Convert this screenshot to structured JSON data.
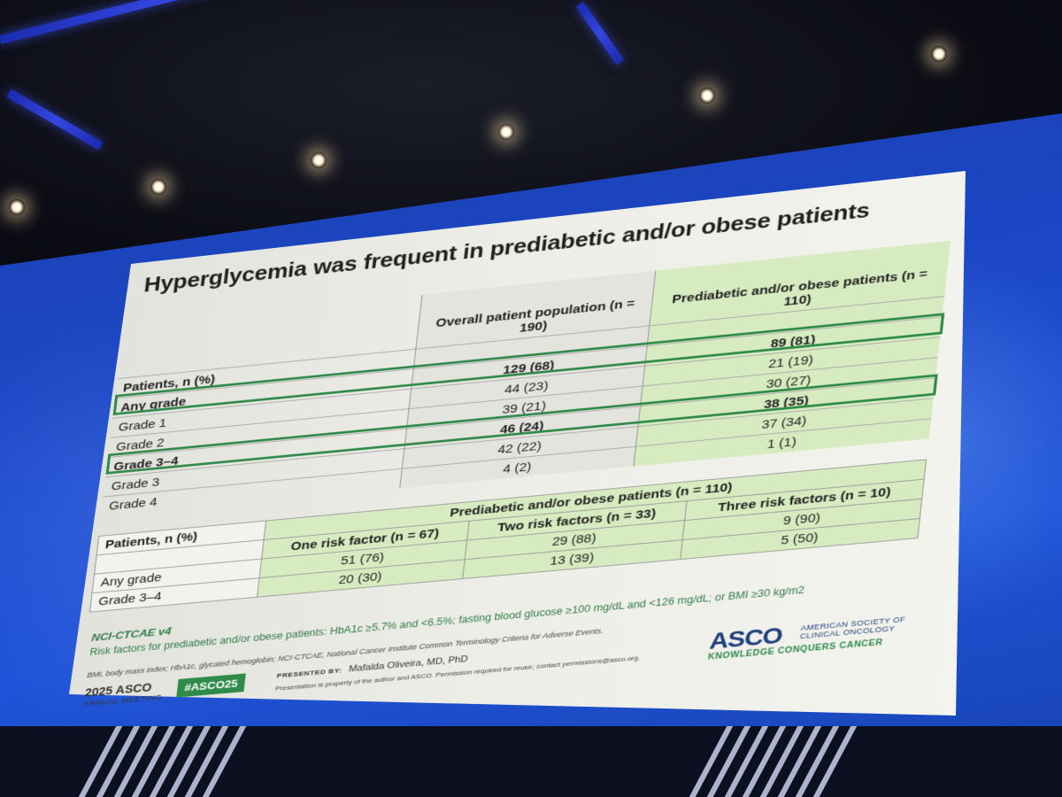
{
  "slide": {
    "title": "Hyperglycemia was frequent in prediabetic and/or obese patients",
    "table1": {
      "col_overall": "Overall patient population (n = 190)",
      "col_prediabetic": "Prediabetic and/or obese patients (n = 110)",
      "rows": [
        {
          "label": "Patients, n (%)",
          "overall": "",
          "prediabetic": ""
        },
        {
          "label": "Any grade",
          "overall": "129 (68)",
          "prediabetic": "89 (81)"
        },
        {
          "label": "Grade 1",
          "overall": "44 (23)",
          "prediabetic": "21 (19)"
        },
        {
          "label": "Grade 2",
          "overall": "39 (21)",
          "prediabetic": "30 (27)"
        },
        {
          "label": "Grade 3–4",
          "overall": "46 (24)",
          "prediabetic": "38 (35)"
        },
        {
          "label": "Grade 3",
          "overall": "42 (22)",
          "prediabetic": "37 (34)"
        },
        {
          "label": "Grade 4",
          "overall": "4 (2)",
          "prediabetic": "1 (1)"
        }
      ]
    },
    "table2": {
      "row_header": "Patients, n (%)",
      "group_header": "Prediabetic and/or obese patients (n = 110)",
      "columns": [
        "One risk factor (n = 67)",
        "Two risk factors (n = 33)",
        "Three risk factors (n = 10)"
      ],
      "rows": [
        {
          "label": "Any grade",
          "values": [
            "51 (76)",
            "29 (88)",
            "9 (90)"
          ]
        },
        {
          "label": "Grade 3–4",
          "values": [
            "20 (30)",
            "13 (39)",
            "5 (50)"
          ]
        }
      ]
    },
    "footnote_title": "NCI-CTCAE v4",
    "footnote_risk": "Risk factors for prediabetic and/or obese patients: HbA1c ≥5.7% and <6.5%; fasting blood glucose ≥100 mg/dL and <126 mg/dL; or BMI ≥30 kg/m2",
    "abbreviations": "BMI, body mass index; HbA1c, glycated hemoglobin; NCI-CTCAE, National Cancer Institute Common Terminology Criteria for Adverse Events.",
    "footer": {
      "meeting_year": "2025 ASCO",
      "meeting_name": "ANNUAL MEETING",
      "hashtag": "#ASCO25",
      "presented_by_label": "PRESENTED BY:",
      "presenter": "Mafalda Oliveira, MD, PhD",
      "disclaimer": "Presentation is property of the author and ASCO. Permission required for reuse; contact permissions@asco.org.",
      "logo": "ASCO",
      "logo_subtitle": "AMERICAN SOCIETY OF CLINICAL ONCOLOGY",
      "tagline": "KNOWLEDGE CONQUERS CANCER"
    }
  },
  "colors": {
    "screen_blue": "#1f53d8",
    "highlight_green": "#2f8a4a",
    "cell_green": "#d7ebc0",
    "asco_navy": "#1e3f7d"
  },
  "icons": [
    "ceiling-light",
    "truss-beam",
    "stage-stripe"
  ]
}
